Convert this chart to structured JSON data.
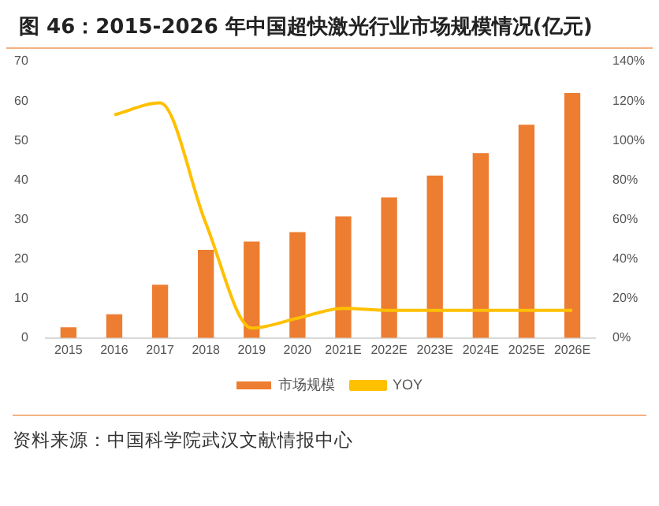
{
  "chart_data": {
    "type": "bar",
    "title": "图 46：2015-2026 年中国超快激光行业市场规模情况(亿元)",
    "categories": [
      "2015",
      "2016",
      "2017",
      "2018",
      "2019",
      "2020",
      "2021E",
      "2022E",
      "2023E",
      "2024E",
      "2025E",
      "2026E"
    ],
    "series": [
      {
        "name": "市场规模",
        "color": "#ed7d31",
        "values": [
          2.7,
          6.0,
          13.5,
          22.3,
          24.4,
          26.8,
          30.8,
          35.6,
          41.1,
          46.8,
          54.0,
          62.0
        ]
      },
      {
        "name": "YOY",
        "type": "line",
        "axis": "y2",
        "color": "#ffc000",
        "values": [
          null,
          113,
          119,
          58,
          5,
          10,
          15,
          14,
          14,
          14,
          14,
          14
        ]
      }
    ],
    "ylim": [
      0,
      70
    ],
    "yticks": [
      0,
      10,
      20,
      30,
      40,
      50,
      60,
      70
    ],
    "y2lim": [
      0,
      140
    ],
    "y2ticks": [
      {
        "value": 0,
        "label": "0%"
      },
      {
        "value": 20,
        "label": "20%"
      },
      {
        "value": 40,
        "label": "40%"
      },
      {
        "value": 60,
        "label": "60%"
      },
      {
        "value": 80,
        "label": "80%"
      },
      {
        "value": 100,
        "label": "100%"
      },
      {
        "value": 120,
        "label": "120%"
      },
      {
        "value": 140,
        "label": "140%"
      }
    ],
    "grid": false,
    "legend": "bottom",
    "marker": "none",
    "annotations": [
      "资料来源：中国科学院武汉文献情报中心"
    ]
  }
}
